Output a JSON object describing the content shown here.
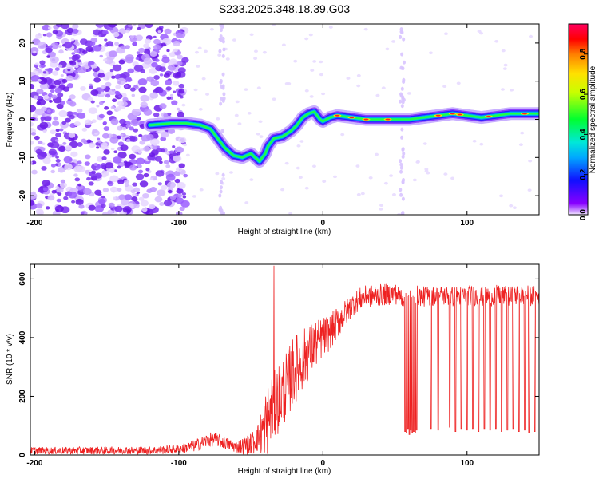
{
  "figure": {
    "title": "S233.2025.348.18.39.G03"
  },
  "chart_data": [
    {
      "type": "heatmap",
      "xlabel": "Height of straight line (km)",
      "ylabel": "Frequency (Hz)",
      "xlim": [
        -203,
        150
      ],
      "ylim": [
        -25,
        25
      ],
      "x_ticks": [
        -200,
        -100,
        0,
        100
      ],
      "y_ticks": [
        -20,
        -10,
        0,
        10,
        20
      ],
      "colorbar": {
        "label": "Normalized spectral amplitude",
        "range": [
          0,
          0.95
        ],
        "ticks": [
          0.0,
          0.2,
          0.4,
          0.6,
          0.8
        ]
      },
      "ridge": {
        "x": [
          -120,
          -105,
          -95,
          -85,
          -78,
          -72,
          -68,
          -62,
          -56,
          -50,
          -44,
          -40,
          -38,
          -34,
          -28,
          -22,
          -18,
          -14,
          -10,
          -6,
          -2,
          0,
          5,
          10,
          20,
          30,
          40,
          50,
          60,
          70,
          80,
          90,
          100,
          110,
          120,
          130,
          140,
          150
        ],
        "y": [
          -1.5,
          -1.0,
          -1.0,
          -1.5,
          -2.5,
          -5.5,
          -7.5,
          -9.5,
          -10.0,
          -9.0,
          -11.0,
          -9.0,
          -7.0,
          -5.0,
          -4.5,
          -3.0,
          -1.5,
          0.5,
          1.5,
          2.0,
          0.0,
          -0.5,
          0.5,
          1.0,
          0.5,
          0.0,
          0.0,
          0.0,
          0.0,
          0.5,
          1.0,
          1.5,
          1.0,
          0.5,
          1.0,
          1.5,
          1.5,
          1.5
        ]
      },
      "noise_region": {
        "x_range": [
          -203,
          -105
        ],
        "density": "high"
      }
    },
    {
      "type": "line",
      "xlabel": "Height of straight line (km)",
      "ylabel": "SNR (10 * v/v)",
      "xlim": [
        -203,
        150
      ],
      "ylim": [
        0,
        650
      ],
      "x_ticks": [
        -200,
        -100,
        0,
        100
      ],
      "y_ticks": [
        0,
        200,
        400,
        600
      ],
      "color": "#ee2222",
      "envelope": {
        "x": [
          -203,
          -120,
          -100,
          -90,
          -85,
          -80,
          -75,
          -70,
          -65,
          -60,
          -50,
          -45,
          -40,
          -35,
          -30,
          -25,
          -20,
          -15,
          -10,
          -5,
          0,
          5,
          10,
          15,
          20,
          25,
          30,
          40,
          50,
          55,
          60,
          65,
          70,
          80,
          90,
          100,
          110,
          120,
          130,
          140,
          150
        ],
        "y": [
          15,
          15,
          20,
          30,
          40,
          50,
          55,
          45,
          35,
          28,
          35,
          60,
          100,
          160,
          200,
          240,
          290,
          320,
          350,
          380,
          400,
          420,
          450,
          480,
          510,
          530,
          540,
          545,
          550,
          540,
          540,
          545,
          540,
          545,
          540,
          545,
          540,
          545,
          540,
          545,
          540
        ]
      },
      "noise_amplitude": {
        "x": [
          -203,
          -100,
          -80,
          -60,
          -45,
          -40,
          -20,
          0,
          20,
          60,
          150
        ],
        "amp": [
          12,
          15,
          25,
          20,
          50,
          120,
          120,
          70,
          40,
          35,
          35
        ]
      },
      "spike": {
        "x": -34,
        "y": 645
      },
      "dropouts": [
        {
          "x": 57,
          "y": 80
        },
        {
          "x": 58,
          "y": 75
        },
        {
          "x": 59,
          "y": 90
        },
        {
          "x": 60,
          "y": 70
        },
        {
          "x": 61,
          "y": 85
        },
        {
          "x": 62,
          "y": 75
        },
        {
          "x": 63,
          "y": 80
        },
        {
          "x": 64,
          "y": 75
        },
        {
          "x": 65,
          "y": 85
        },
        {
          "x": 75,
          "y": 90
        },
        {
          "x": 80,
          "y": 85
        },
        {
          "x": 88,
          "y": 95
        },
        {
          "x": 92,
          "y": 80
        },
        {
          "x": 96,
          "y": 90
        },
        {
          "x": 100,
          "y": 85
        },
        {
          "x": 104,
          "y": 90
        },
        {
          "x": 108,
          "y": 80
        },
        {
          "x": 112,
          "y": 90
        },
        {
          "x": 116,
          "y": 85
        },
        {
          "x": 120,
          "y": 90
        },
        {
          "x": 124,
          "y": 80
        },
        {
          "x": 128,
          "y": 85
        },
        {
          "x": 132,
          "y": 90
        },
        {
          "x": 136,
          "y": 80
        },
        {
          "x": 140,
          "y": 85
        },
        {
          "x": 143,
          "y": 75
        },
        {
          "x": 147,
          "y": 80
        }
      ]
    }
  ]
}
